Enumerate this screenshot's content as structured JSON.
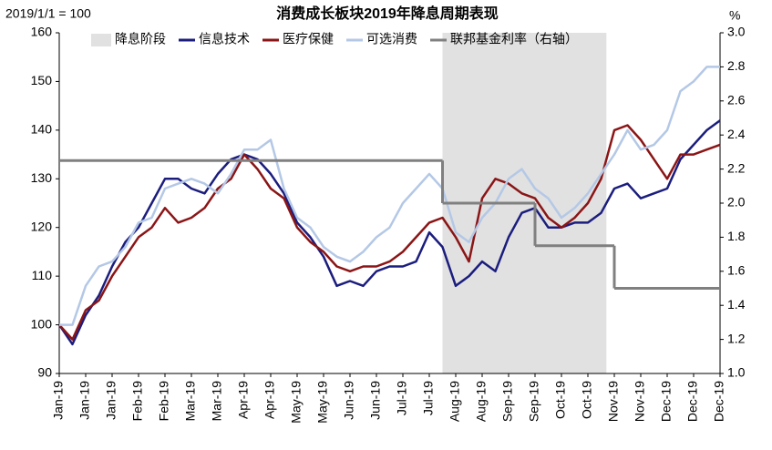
{
  "chart_data": {
    "type": "line",
    "title": "消费成长板块2019年降息周期表现",
    "annotations": [
      "2019/1/1 = 100",
      "%"
    ],
    "categories": [
      "Jan-19",
      null,
      "Jan-19",
      null,
      "Jan-19",
      null,
      "Feb-19",
      null,
      "Feb-19",
      null,
      "Mar-19",
      null,
      "Mar-19",
      null,
      "Apr-19",
      null,
      "Apr-19",
      null,
      "May-19",
      null,
      "May-19",
      null,
      "Jun-19",
      null,
      "Jun-19",
      null,
      "Jul-19",
      null,
      "Jul-19",
      null,
      "Aug-19",
      null,
      "Aug-19",
      null,
      "Sep-19",
      null,
      "Sep-19",
      null,
      "Oct-19",
      null,
      "Oct-19",
      null,
      "Nov-19",
      null,
      "Nov-19",
      null,
      "Dec-19",
      null,
      "Dec-19",
      null,
      "Dec-19"
    ],
    "shade": {
      "label": "降息阶段",
      "color": "#e1e1e1",
      "from": 29,
      "to": 41.4
    },
    "series": [
      {
        "name": "信息技术",
        "color": "#1b1d7e",
        "values": [
          100,
          96,
          102,
          106,
          112,
          117,
          120,
          125,
          130,
          130,
          128,
          127,
          131,
          134,
          135,
          134,
          131,
          127,
          121,
          118,
          114,
          108,
          109,
          108,
          111,
          112,
          112,
          113,
          119,
          116,
          108,
          110,
          113,
          111,
          118,
          123,
          124,
          120,
          120,
          121,
          121,
          123,
          128,
          129,
          126,
          127,
          128,
          134,
          137,
          140,
          142
        ]
      },
      {
        "name": "医疗保健",
        "color": "#8b1516",
        "values": [
          100,
          97,
          103,
          105,
          110,
          114,
          118,
          120,
          124,
          121,
          122,
          124,
          128,
          130,
          135,
          132,
          128,
          126,
          120,
          117,
          115,
          112,
          111,
          112,
          112,
          113,
          115,
          118,
          121,
          122,
          118,
          113,
          126,
          130,
          129,
          127,
          126,
          122,
          120,
          122,
          125,
          130,
          140,
          141,
          138,
          134,
          130,
          135,
          135,
          136,
          137
        ]
      },
      {
        "name": "可选消费",
        "color": "#b4c8e6",
        "values": [
          100,
          100,
          108,
          112,
          113,
          116,
          121,
          122,
          128,
          129,
          130,
          129,
          127,
          131,
          136,
          136,
          138,
          128,
          122,
          120,
          116,
          114,
          113,
          115,
          118,
          120,
          125,
          128,
          131,
          128,
          119,
          117,
          122,
          125,
          130,
          132,
          128,
          126,
          122,
          124,
          127,
          131,
          135,
          140,
          136,
          137,
          140,
          148,
          150,
          153,
          153
        ]
      },
      {
        "name": "联邦基金利率（右轴）",
        "color": "#808080",
        "axis": "y2",
        "step": true,
        "values": [
          2.25,
          2.25,
          2.25,
          2.25,
          2.25,
          2.25,
          2.25,
          2.25,
          2.25,
          2.25,
          2.25,
          2.25,
          2.25,
          2.25,
          2.25,
          2.25,
          2.25,
          2.25,
          2.25,
          2.25,
          2.25,
          2.25,
          2.25,
          2.25,
          2.25,
          2.25,
          2.25,
          2.25,
          2.25,
          2.0,
          2.0,
          2.0,
          2.0,
          2.0,
          2.0,
          2.0,
          1.75,
          1.75,
          1.75,
          1.75,
          1.75,
          1.75,
          1.5,
          1.5,
          1.5,
          1.5,
          1.5,
          1.5,
          1.5,
          1.5,
          1.5
        ]
      }
    ],
    "ylim": [
      90,
      160
    ],
    "yticks": [
      90,
      100,
      110,
      120,
      130,
      140,
      150,
      160
    ],
    "y2lim": [
      1.0,
      3.0
    ],
    "y2ticks": [
      {
        "value": 1.0,
        "label": "1.0"
      },
      1.2,
      1.4,
      1.6,
      1.8,
      {
        "value": 2.0,
        "label": "2.0"
      },
      2.2,
      2.4,
      2.6,
      2.8,
      {
        "value": 3.0,
        "label": "3.0"
      }
    ],
    "grid": false,
    "legend": "top"
  }
}
